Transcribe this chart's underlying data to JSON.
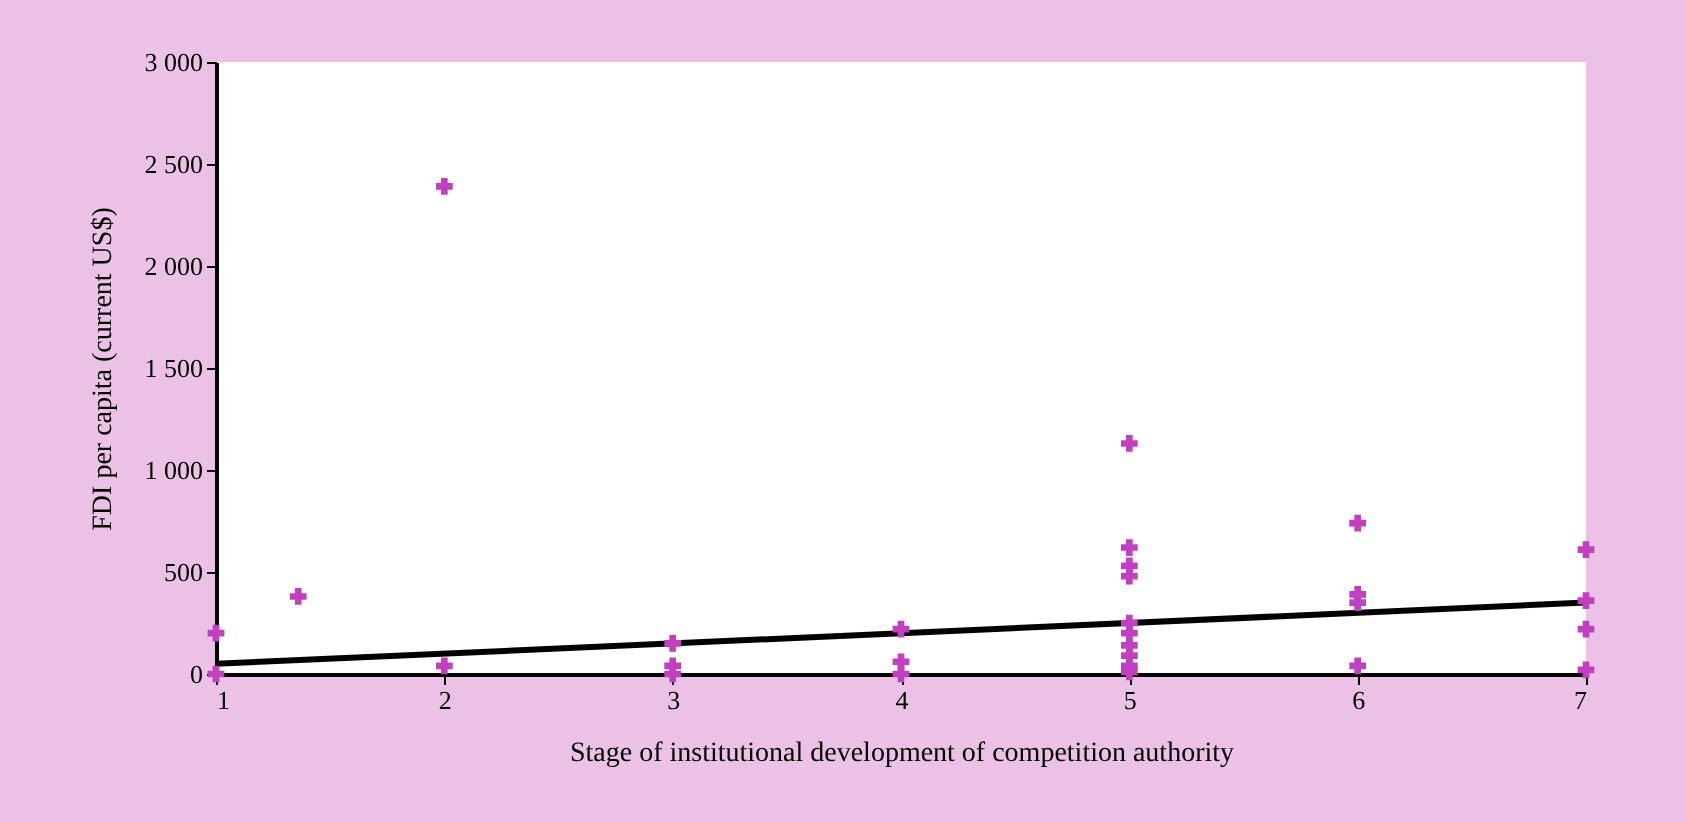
{
  "chart_data": {
    "type": "scatter",
    "xlabel": "Stage of institutional development of competition authority",
    "ylabel": "FDI per capita (current US$)",
    "xlim": [
      1,
      7
    ],
    "xticks": [
      1,
      2,
      3,
      4,
      5,
      6,
      7
    ],
    "ylim": [
      0,
      3000
    ],
    "yticks": [
      0,
      500,
      {
        "value": 1000,
        "label": "1 000"
      },
      {
        "value": 1500,
        "label": "1 500"
      },
      {
        "value": 2000,
        "label": "2 000"
      },
      {
        "value": 2500,
        "label": "2 500"
      },
      {
        "value": 3000,
        "label": "3 000"
      }
    ],
    "grid": false,
    "series": [
      {
        "color": "#c040c0",
        "marker": "cross",
        "x": [
          1,
          1,
          1.36,
          2,
          2,
          3,
          3,
          3,
          4,
          4,
          4,
          5,
          5,
          5,
          5,
          5,
          5,
          5,
          5,
          5,
          5,
          6,
          6,
          6,
          6,
          7,
          7,
          7,
          7
        ],
        "values": [
          200,
          0,
          380,
          2390,
          40,
          150,
          40,
          0,
          220,
          60,
          0,
          1130,
          620,
          530,
          480,
          250,
          200,
          140,
          90,
          40,
          10,
          740,
          390,
          350,
          40,
          610,
          360,
          220,
          20
        ]
      },
      {
        "type": "line",
        "color": "#000000",
        "line_style": "solid",
        "x": [
          1,
          7
        ],
        "values": [
          50,
          350
        ]
      }
    ]
  }
}
